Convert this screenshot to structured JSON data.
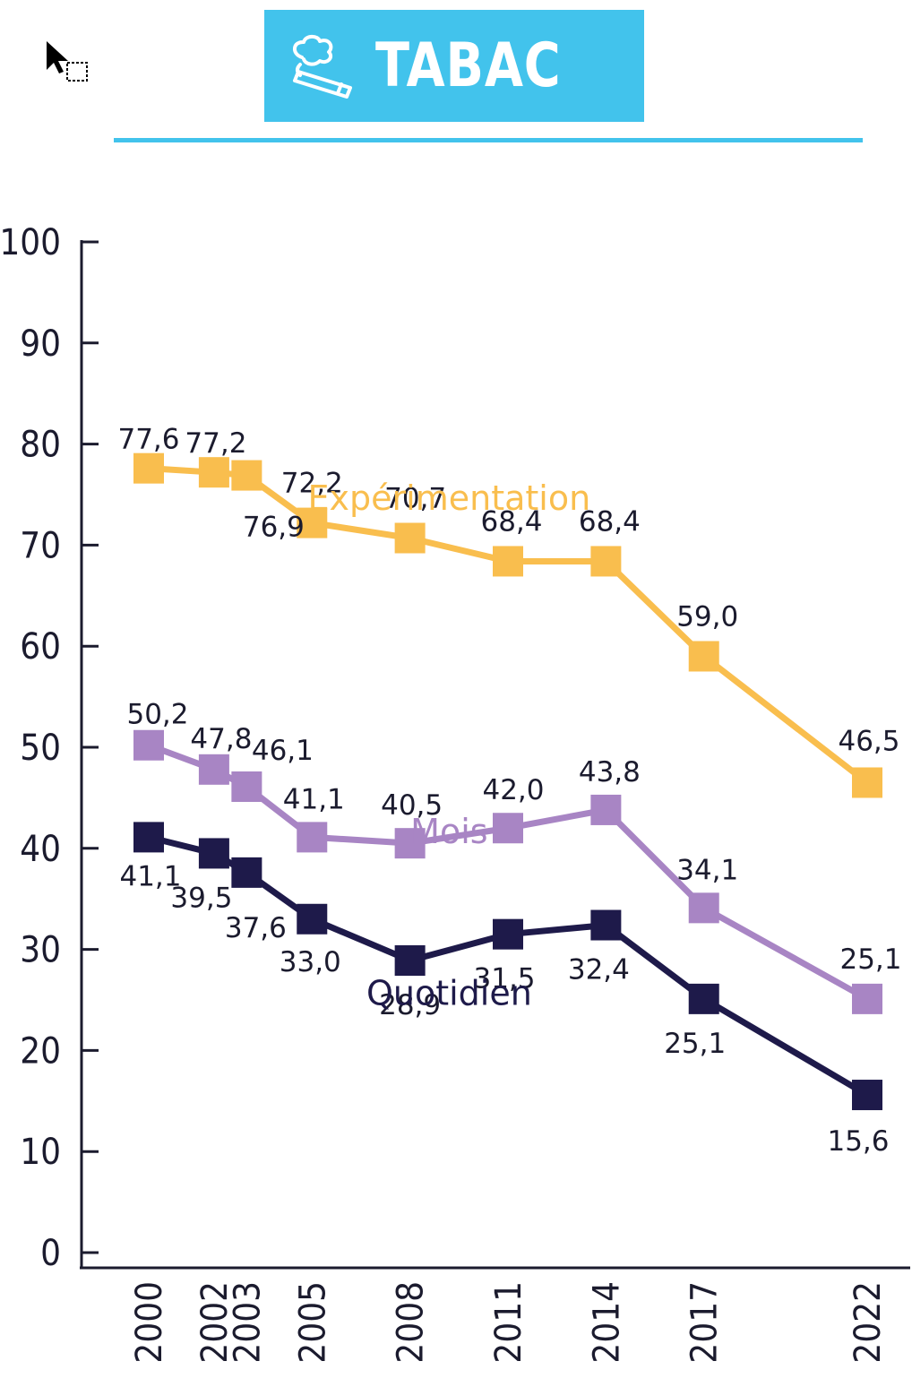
{
  "header": {
    "title": "TABAC",
    "icon": "cigarette-icon",
    "color": "#42c3ec"
  },
  "chart_data": {
    "type": "line",
    "title": "",
    "xlabel": "",
    "ylabel": "",
    "ylim": [
      0,
      100
    ],
    "yticks": [
      "0",
      "10",
      "20",
      "30",
      "40",
      "50",
      "60",
      "70",
      "80",
      "90",
      "100"
    ],
    "x": [
      "2000",
      "2002",
      "2003",
      "2005",
      "2008",
      "2011",
      "2014",
      "2017",
      "2022"
    ],
    "series": [
      {
        "name": "Expérimentation",
        "color": "#f9be4e",
        "values": [
          77.6,
          77.2,
          76.9,
          72.2,
          70.7,
          68.4,
          68.4,
          59.0,
          46.5
        ],
        "labels": [
          "77,6",
          "77,2",
          "76,9",
          "72,2",
          "70,7",
          "68,4",
          "68,4",
          "59,0",
          "46,5"
        ]
      },
      {
        "name": "Mois",
        "color": "#a885c4",
        "values": [
          50.2,
          47.8,
          46.1,
          41.1,
          40.5,
          42.0,
          43.8,
          34.1,
          25.1
        ],
        "labels": [
          "50,2",
          "47,8",
          "46,1",
          "41,1",
          "40,5",
          "42,0",
          "43,8",
          "34,1",
          "25,1"
        ]
      },
      {
        "name": "Quotidien",
        "color": "#1e1a4a",
        "values": [
          41.1,
          39.5,
          37.6,
          33.0,
          28.9,
          31.5,
          32.4,
          25.1,
          15.6
        ],
        "labels": [
          "41,1",
          "39,5",
          "37,6",
          "33,0",
          "28,9",
          "31,5",
          "32,4",
          "25,1",
          "15,6"
        ]
      }
    ],
    "grid": false,
    "legend": "inline"
  }
}
